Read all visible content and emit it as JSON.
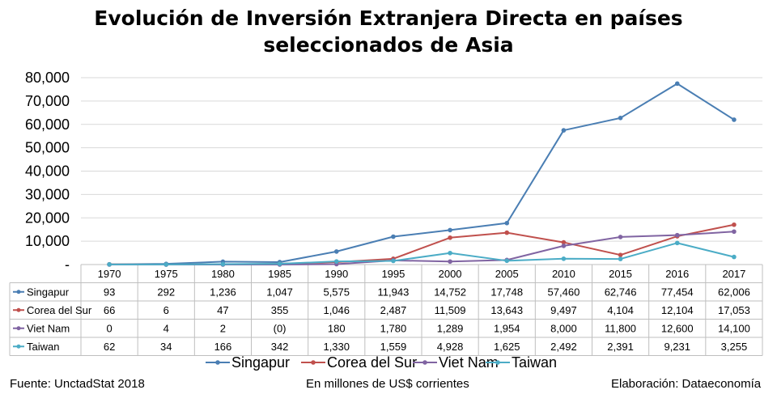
{
  "chart_data": {
    "type": "line",
    "title_line1": "Evolución de Inversión Extranjera Directa en países",
    "title_line2": "seleccionados de Asia",
    "categories": [
      "1970",
      "1975",
      "1980",
      "1985",
      "1990",
      "1995",
      "2000",
      "2005",
      "2010",
      "2015",
      "2016",
      "2017"
    ],
    "y_tick_labels": [
      "-",
      "10,000",
      "20,000",
      "30,000",
      "40,000",
      "50,000",
      "60,000",
      "70,000",
      "80,000"
    ],
    "ylim": [
      0,
      80000
    ],
    "grid": true,
    "legend_position": "bottom",
    "series": [
      {
        "name": "Singapur",
        "color": "#4a7eb3",
        "values": [
          93,
          292,
          1236,
          1047,
          5575,
          11943,
          14752,
          17748,
          57460,
          62746,
          77454,
          62006
        ],
        "labels": [
          "93",
          "292",
          "1,236",
          "1,047",
          "5,575",
          "11,943",
          "14,752",
          "17,748",
          "57,460",
          "62,746",
          "77,454",
          "62,006"
        ]
      },
      {
        "name": "Corea del Sur",
        "color": "#c0504d",
        "values": [
          66,
          6,
          47,
          355,
          1046,
          2487,
          11509,
          13643,
          9497,
          4104,
          12104,
          17053
        ],
        "labels": [
          "66",
          "6",
          "47",
          "355",
          "1,046",
          "2,487",
          "11,509",
          "13,643",
          "9,497",
          "4,104",
          "12,104",
          "17,053"
        ]
      },
      {
        "name": "Viet Nam",
        "color": "#8064a2",
        "values": [
          0,
          4,
          2,
          0,
          180,
          1780,
          1289,
          1954,
          8000,
          11800,
          12600,
          14100
        ],
        "labels": [
          "0",
          "4",
          "2",
          "(0)",
          "180",
          "1,780",
          "1,289",
          "1,954",
          "8,000",
          "11,800",
          "12,600",
          "14,100"
        ]
      },
      {
        "name": "Taiwan",
        "color": "#4bacc6",
        "values": [
          62,
          34,
          166,
          342,
          1330,
          1559,
          4928,
          1625,
          2492,
          2391,
          9231,
          3255
        ],
        "labels": [
          "62",
          "34",
          "166",
          "342",
          "1,330",
          "1,559",
          "4,928",
          "1,625",
          "2,492",
          "2,391",
          "9,231",
          "3,255"
        ]
      }
    ]
  },
  "footer": {
    "source": "Fuente: UnctadStat 2018",
    "units": "En millones de US$ corrientes",
    "credit": "Elaboración: Dataeconomía"
  }
}
